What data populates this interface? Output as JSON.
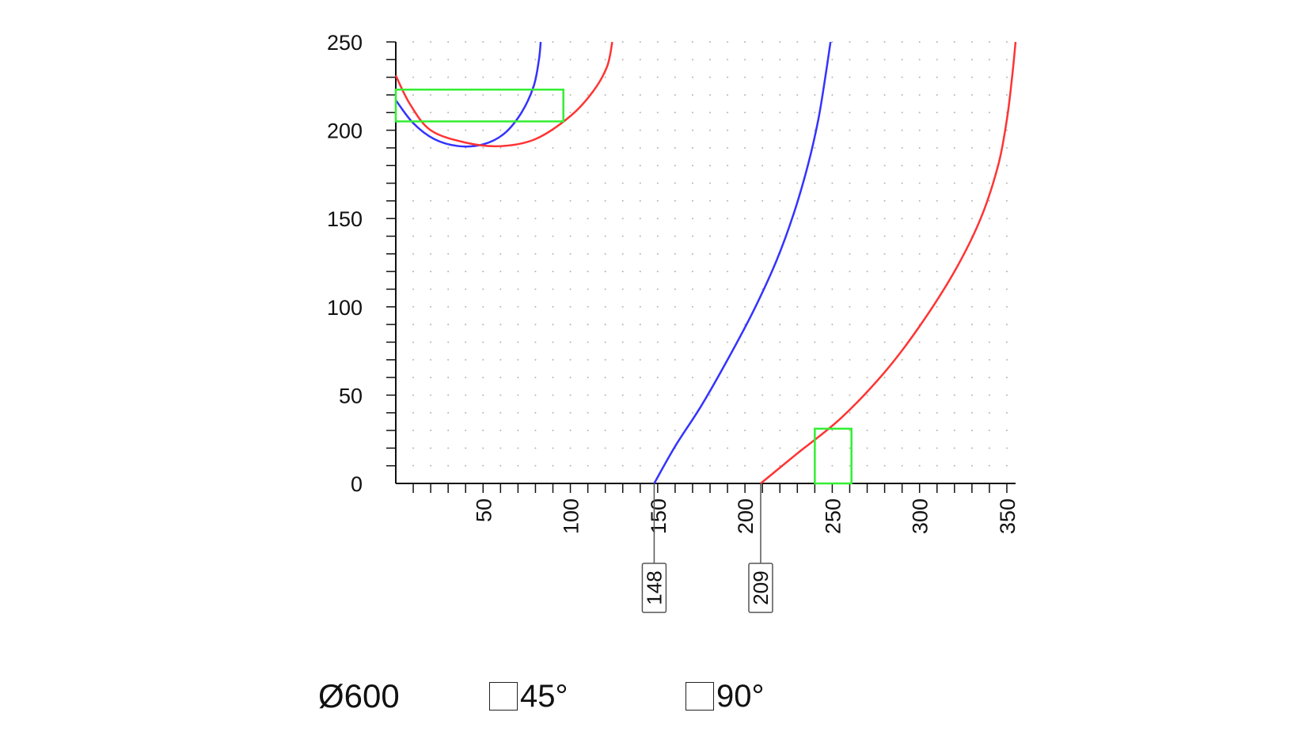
{
  "chart_data": {
    "type": "line",
    "title": "",
    "xlabel": "",
    "ylabel": "",
    "xlim": [
      0,
      355
    ],
    "ylim": [
      0,
      250
    ],
    "x_ticks": [
      50,
      100,
      150,
      200,
      250,
      300,
      350
    ],
    "y_ticks": [
      0,
      50,
      100,
      150,
      200,
      250
    ],
    "grid": "dotted",
    "series": [
      {
        "color": "#3333ff",
        "points": [
          [
            148,
            0
          ],
          [
            160,
            21
          ],
          [
            175,
            44
          ],
          [
            190,
            70
          ],
          [
            205,
            98
          ],
          [
            218,
            126
          ],
          [
            228,
            153
          ],
          [
            236,
            180
          ],
          [
            242,
            206
          ],
          [
            246,
            230
          ],
          [
            249,
            250
          ]
        ]
      },
      {
        "color": "#ff3333",
        "points": [
          [
            209,
            0
          ],
          [
            230,
            17
          ],
          [
            255,
            37
          ],
          [
            280,
            63
          ],
          [
            300,
            89
          ],
          [
            320,
            120
          ],
          [
            335,
            150
          ],
          [
            345,
            180
          ],
          [
            350,
            206
          ],
          [
            353,
            230
          ],
          [
            355,
            250
          ]
        ]
      },
      {
        "color": "#3333ff",
        "points": [
          [
            0,
            217
          ],
          [
            10,
            204
          ],
          [
            22,
            195
          ],
          [
            36,
            191
          ],
          [
            50,
            192
          ],
          [
            62,
            198
          ],
          [
            72,
            210
          ],
          [
            79,
            225
          ],
          [
            82,
            240
          ],
          [
            83,
            250
          ]
        ]
      },
      {
        "color": "#ff3333",
        "points": [
          [
            0,
            231
          ],
          [
            8,
            215
          ],
          [
            20,
            200
          ],
          [
            40,
            193
          ],
          [
            60,
            191
          ],
          [
            80,
            195
          ],
          [
            100,
            208
          ],
          [
            113,
            222
          ],
          [
            121,
            236
          ],
          [
            124,
            250
          ]
        ]
      }
    ],
    "rectangles": [
      {
        "color": "#33ee33",
        "x": [
          0,
          96
        ],
        "y": [
          205,
          223
        ]
      },
      {
        "color": "#33ee33",
        "x": [
          240,
          261
        ],
        "y": [
          0,
          31
        ]
      }
    ],
    "markers": [
      {
        "x": 148,
        "label": "148"
      },
      {
        "x": 209,
        "label": "209"
      }
    ]
  },
  "legend": {
    "diameter": "Ø600",
    "item_45": "45°",
    "item_90": "90°"
  }
}
